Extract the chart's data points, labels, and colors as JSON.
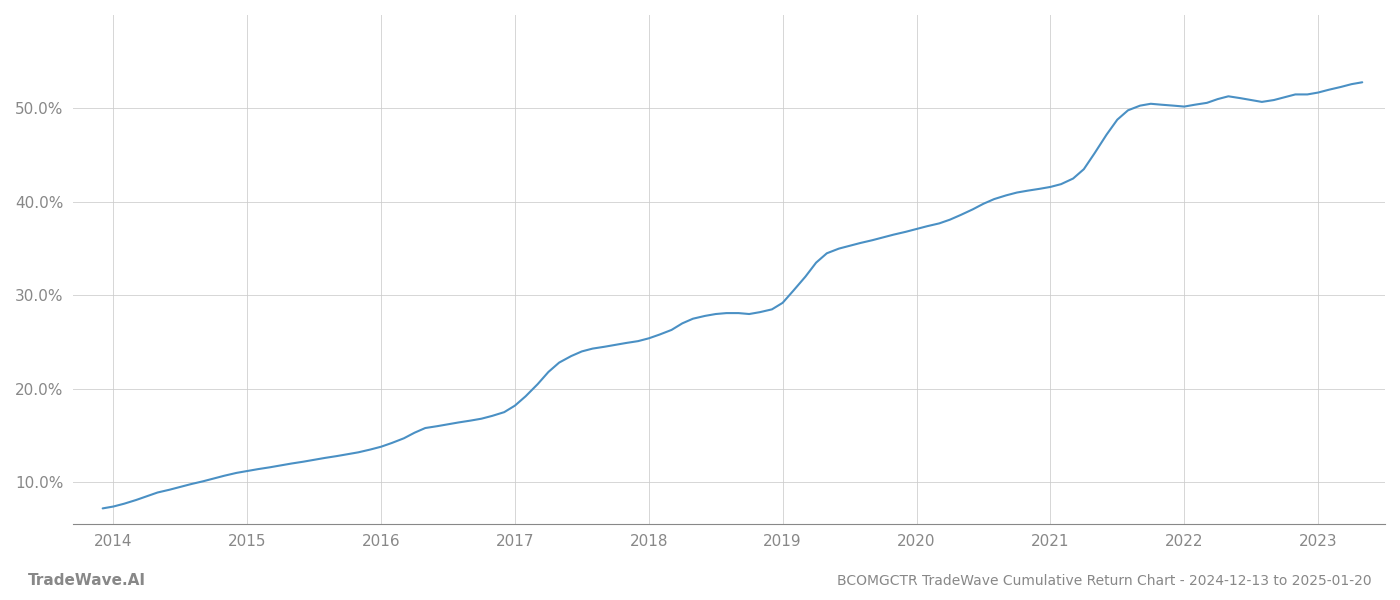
{
  "title": "BCOMGCTR TradeWave Cumulative Return Chart - 2024-12-13 to 2025-01-20",
  "watermark": "TradeWave.AI",
  "line_color": "#4a90c4",
  "background_color": "#ffffff",
  "grid_color": "#cccccc",
  "axis_color": "#888888",
  "label_color": "#888888",
  "x_years": [
    2014,
    2015,
    2016,
    2017,
    2018,
    2019,
    2020,
    2021,
    2022,
    2023
  ],
  "y_ticks": [
    10.0,
    20.0,
    30.0,
    40.0,
    50.0
  ],
  "x_data": [
    2013.92,
    2014.0,
    2014.08,
    2014.17,
    2014.25,
    2014.33,
    2014.42,
    2014.5,
    2014.58,
    2014.67,
    2014.75,
    2014.83,
    2014.92,
    2015.0,
    2015.08,
    2015.17,
    2015.25,
    2015.33,
    2015.42,
    2015.5,
    2015.58,
    2015.67,
    2015.75,
    2015.83,
    2015.92,
    2016.0,
    2016.08,
    2016.17,
    2016.25,
    2016.33,
    2016.42,
    2016.5,
    2016.58,
    2016.67,
    2016.75,
    2016.83,
    2016.92,
    2017.0,
    2017.08,
    2017.17,
    2017.25,
    2017.33,
    2017.42,
    2017.5,
    2017.58,
    2017.67,
    2017.75,
    2017.83,
    2017.92,
    2018.0,
    2018.08,
    2018.17,
    2018.25,
    2018.33,
    2018.42,
    2018.5,
    2018.58,
    2018.67,
    2018.75,
    2018.83,
    2018.92,
    2019.0,
    2019.08,
    2019.17,
    2019.25,
    2019.33,
    2019.42,
    2019.5,
    2019.58,
    2019.67,
    2019.75,
    2019.83,
    2019.92,
    2020.0,
    2020.08,
    2020.17,
    2020.25,
    2020.33,
    2020.42,
    2020.5,
    2020.58,
    2020.67,
    2020.75,
    2020.83,
    2020.92,
    2021.0,
    2021.08,
    2021.17,
    2021.25,
    2021.33,
    2021.42,
    2021.5,
    2021.58,
    2021.67,
    2021.75,
    2021.83,
    2021.92,
    2022.0,
    2022.08,
    2022.17,
    2022.25,
    2022.33,
    2022.42,
    2022.5,
    2022.58,
    2022.67,
    2022.75,
    2022.83,
    2022.92,
    2023.0,
    2023.08,
    2023.17,
    2023.25,
    2023.33
  ],
  "y_data": [
    7.2,
    7.4,
    7.7,
    8.1,
    8.5,
    8.9,
    9.2,
    9.5,
    9.8,
    10.1,
    10.4,
    10.7,
    11.0,
    11.2,
    11.4,
    11.6,
    11.8,
    12.0,
    12.2,
    12.4,
    12.6,
    12.8,
    13.0,
    13.2,
    13.5,
    13.8,
    14.2,
    14.7,
    15.3,
    15.8,
    16.0,
    16.2,
    16.4,
    16.6,
    16.8,
    17.1,
    17.5,
    18.2,
    19.2,
    20.5,
    21.8,
    22.8,
    23.5,
    24.0,
    24.3,
    24.5,
    24.7,
    24.9,
    25.1,
    25.4,
    25.8,
    26.3,
    27.0,
    27.5,
    27.8,
    28.0,
    28.1,
    28.1,
    28.0,
    28.2,
    28.5,
    29.2,
    30.5,
    32.0,
    33.5,
    34.5,
    35.0,
    35.3,
    35.6,
    35.9,
    36.2,
    36.5,
    36.8,
    37.1,
    37.4,
    37.7,
    38.1,
    38.6,
    39.2,
    39.8,
    40.3,
    40.7,
    41.0,
    41.2,
    41.4,
    41.6,
    41.9,
    42.5,
    43.5,
    45.2,
    47.2,
    48.8,
    49.8,
    50.3,
    50.5,
    50.4,
    50.3,
    50.2,
    50.4,
    50.6,
    51.0,
    51.3,
    51.1,
    50.9,
    50.7,
    50.9,
    51.2,
    51.5,
    51.5,
    51.7,
    52.0,
    52.3,
    52.6,
    52.8
  ],
  "xlim": [
    2013.7,
    2023.5
  ],
  "ylim": [
    5.5,
    60.0
  ],
  "line_width": 1.5,
  "title_fontsize": 10,
  "tick_fontsize": 11,
  "watermark_fontsize": 11
}
